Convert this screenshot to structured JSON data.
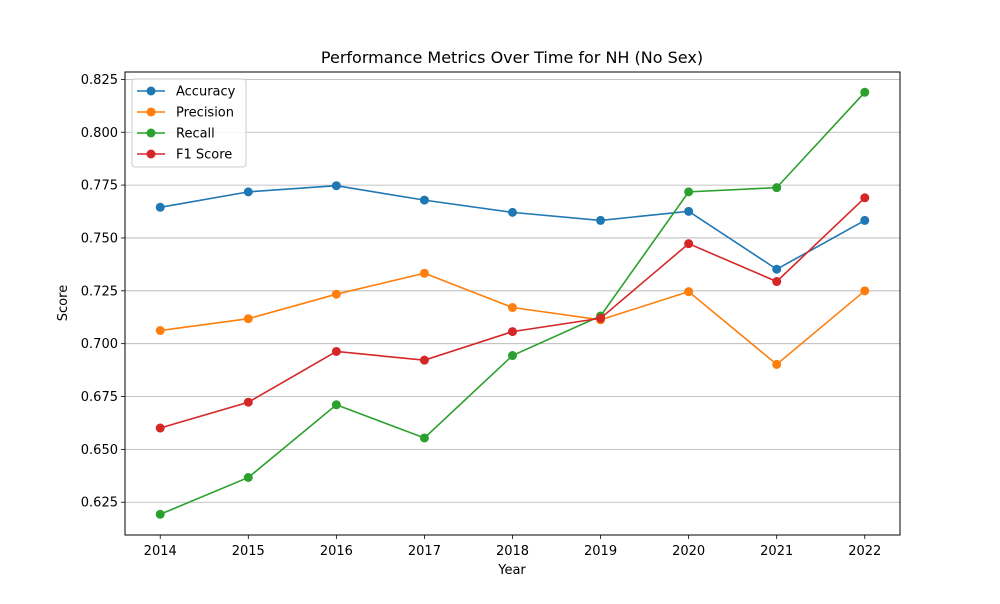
{
  "chart_data": {
    "type": "line",
    "title": "Performance Metrics Over Time for NH (No Sex)",
    "xlabel": "Year",
    "ylabel": "Score",
    "categories": [
      "2014",
      "2015",
      "2016",
      "2017",
      "2018",
      "2019",
      "2020",
      "2021",
      "2022"
    ],
    "x": [
      2014,
      2015,
      2016,
      2017,
      2018,
      2019,
      2020,
      2021,
      2022
    ],
    "xlim": [
      2013.6,
      2022.4
    ],
    "ylim": [
      0.6095,
      0.8285
    ],
    "yticks": [
      "0.625",
      "0.650",
      "0.675",
      "0.700",
      "0.725",
      "0.750",
      "0.775",
      "0.800",
      "0.825"
    ],
    "ytick_values": [
      0.625,
      0.65,
      0.675,
      0.7,
      0.725,
      0.75,
      0.775,
      0.8,
      0.825
    ],
    "grid": "y-axis only",
    "legend_position": "top-left",
    "series": [
      {
        "name": "Accuracy",
        "color": "#1f77b4",
        "values": [
          0.7645,
          0.7718,
          0.7747,
          0.7679,
          0.7621,
          0.7583,
          0.7626,
          0.7352,
          0.7583
        ]
      },
      {
        "name": "Precision",
        "color": "#ff7f0e",
        "values": [
          0.7062,
          0.7118,
          0.7234,
          0.7333,
          0.7171,
          0.7113,
          0.7246,
          0.6902,
          0.725
        ]
      },
      {
        "name": "Recall",
        "color": "#2ca02c",
        "values": [
          0.6193,
          0.6367,
          0.6711,
          0.6554,
          0.6944,
          0.7131,
          0.7718,
          0.7738,
          0.8189
        ]
      },
      {
        "name": "F1 Score",
        "color": "#d62728",
        "values": [
          0.6601,
          0.6723,
          0.6963,
          0.6922,
          0.7057,
          0.712,
          0.7473,
          0.7294,
          0.769
        ]
      }
    ]
  }
}
